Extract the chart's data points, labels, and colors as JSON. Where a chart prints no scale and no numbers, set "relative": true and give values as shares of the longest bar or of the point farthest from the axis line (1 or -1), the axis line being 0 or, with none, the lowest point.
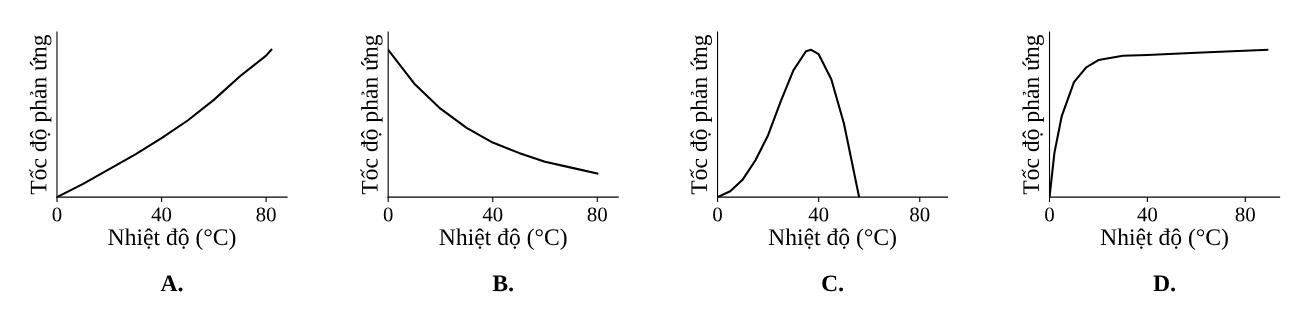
{
  "chart_data": [
    {
      "type": "line",
      "title": "A.",
      "xlabel": "Nhiệt độ (°C)",
      "ylabel": "Tốc độ phản ứng",
      "relative": true,
      "xlim": [
        0,
        88
      ],
      "xticks": [
        0,
        40,
        80
      ],
      "marker": "none",
      "line_style": "solid",
      "series": [
        {
          "color": "#000000",
          "x": [
            0,
            10,
            20,
            30,
            40,
            50,
            60,
            70,
            80,
            82
          ],
          "values": [
            0,
            0.09,
            0.19,
            0.29,
            0.4,
            0.52,
            0.66,
            0.82,
            0.96,
            1
          ]
        }
      ]
    },
    {
      "type": "line",
      "title": "B.",
      "xlabel": "Nhiệt độ (°C)",
      "ylabel": "Tốc độ phản ứng",
      "relative": true,
      "xlim": [
        0,
        88
      ],
      "xticks": [
        0,
        40,
        80
      ],
      "marker": "none",
      "line_style": "solid",
      "series": [
        {
          "color": "#000000",
          "x": [
            0,
            10,
            20,
            30,
            40,
            50,
            60,
            70,
            80
          ],
          "values": [
            1,
            0.77,
            0.6,
            0.47,
            0.37,
            0.3,
            0.24,
            0.2,
            0.16
          ]
        }
      ]
    },
    {
      "type": "line",
      "title": "C.",
      "xlabel": "Nhiệt độ (°C)",
      "ylabel": "Tốc độ phản ứng",
      "relative": true,
      "xlim": [
        0,
        91
      ],
      "xticks": [
        0,
        40,
        80
      ],
      "marker": "none",
      "line_style": "solid",
      "series": [
        {
          "color": "#000000",
          "x": [
            0,
            5,
            10,
            15,
            20,
            25,
            30,
            35,
            37,
            40,
            45,
            50,
            53,
            56
          ],
          "values": [
            0,
            0.04,
            0.12,
            0.25,
            0.42,
            0.65,
            0.86,
            0.99,
            1,
            0.97,
            0.8,
            0.5,
            0.25,
            0
          ]
        }
      ]
    },
    {
      "type": "line",
      "title": "D.",
      "xlabel": "Nhiệt độ (°C)",
      "ylabel": "Tốc độ phản ứng",
      "relative": true,
      "xlim": [
        0,
        94
      ],
      "xticks": [
        0,
        40,
        80
      ],
      "marker": "none",
      "line_style": "solid",
      "series": [
        {
          "color": "#000000",
          "x": [
            0,
            2,
            5,
            10,
            15,
            20,
            30,
            40,
            60,
            89
          ],
          "values": [
            0,
            0.3,
            0.55,
            0.78,
            0.88,
            0.93,
            0.96,
            0.965,
            0.98,
            1
          ]
        }
      ]
    }
  ]
}
